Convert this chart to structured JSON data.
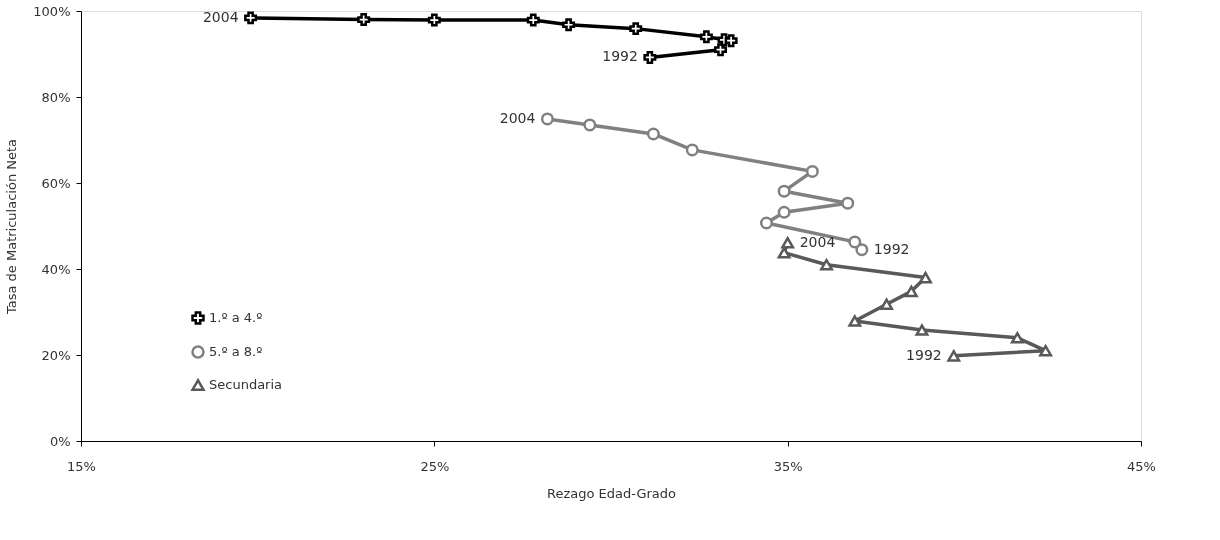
{
  "chart_data": {
    "type": "line",
    "xlabel": "Rezago Edad-Grado",
    "ylabel": "Tasa de Matriculación Neta",
    "xlim": [
      15,
      45
    ],
    "xticks": [
      {
        "value": 15,
        "label": "15%"
      },
      {
        "value": 25,
        "label": "25%"
      },
      {
        "value": 35,
        "label": "35%"
      },
      {
        "value": 45,
        "label": "45%"
      }
    ],
    "ylim": [
      0,
      100
    ],
    "yticks": [
      {
        "value": 0,
        "label": "0%"
      },
      {
        "value": 20,
        "label": "20%"
      },
      {
        "value": 40,
        "label": "40%"
      },
      {
        "value": 60,
        "label": "60%"
      },
      {
        "value": 80,
        "label": "80%"
      },
      {
        "value": 100,
        "label": "100%"
      }
    ],
    "grid": false,
    "legend": "bottom left",
    "line_style": "solid",
    "series": [
      {
        "name": "1.º a 4.º",
        "color": "#000000",
        "marker": "cross",
        "x": [
          31.1,
          33.1,
          33.2,
          33.4,
          32.7,
          30.7,
          28.8,
          27.8,
          25.0,
          23.0,
          19.8
        ],
        "values": [
          89.2,
          91.0,
          93.3,
          93.1,
          94.0,
          95.9,
          96.8,
          97.9,
          97.9,
          98.0,
          98.4
        ]
      },
      {
        "name": "5.º a 8.º",
        "color": "#808080",
        "marker": "circle",
        "x": [
          37.1,
          36.9,
          34.4,
          34.9,
          36.7,
          34.9,
          35.7,
          32.3,
          31.2,
          29.4,
          28.2
        ],
        "values": [
          44.5,
          46.3,
          50.7,
          53.2,
          55.3,
          58.1,
          62.7,
          67.7,
          71.4,
          73.5,
          74.9
        ]
      },
      {
        "name": "Secundaria",
        "color": "#595959",
        "marker": "triangle",
        "x": [
          39.7,
          42.3,
          41.5,
          38.8,
          36.9,
          37.8,
          38.5,
          38.9,
          36.1,
          34.9,
          35.0
        ],
        "values": [
          19.8,
          21.0,
          24.0,
          25.8,
          27.9,
          31.8,
          34.8,
          38.0,
          41.0,
          43.8,
          46.1
        ]
      }
    ],
    "annotations": [
      {
        "text": "2004",
        "x": 19.8,
        "y": 98.4
      },
      {
        "text": "1992",
        "x": 31.1,
        "y": 89.2
      },
      {
        "text": "2004",
        "x": 28.2,
        "y": 74.9
      },
      {
        "text": "1992",
        "x": 37.1,
        "y": 44.5
      },
      {
        "text": "2004",
        "x": 35.0,
        "y": 46.1
      },
      {
        "text": "1992",
        "x": 39.7,
        "y": 19.8
      }
    ]
  }
}
